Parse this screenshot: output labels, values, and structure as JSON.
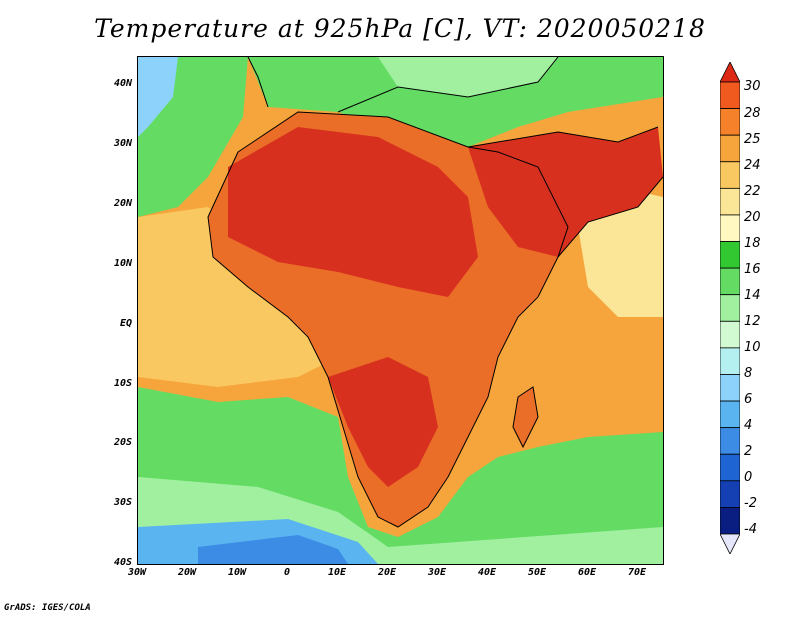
{
  "title": "Temperature at 925hPa [C], VT: 2020050218",
  "footer": "GrADS: IGES/COLA",
  "map": {
    "projection": "latlon",
    "lon_range": [
      -30,
      75
    ],
    "lat_range": [
      -40,
      45
    ],
    "colors": {
      "ocean_cold": "#4080e0",
      "green": "#6ed76e",
      "light_green": "#9ee89e",
      "yellow": "#f5d76e",
      "orange": "#f0a23c",
      "dark_orange": "#eb6e28",
      "red": "#d7301e",
      "coast": "#000000"
    }
  },
  "axes": {
    "lat_labels": [
      "40N",
      "30N",
      "20N",
      "10N",
      "EQ",
      "10S",
      "20S",
      "30S",
      "40S"
    ],
    "lon_labels": [
      "30W",
      "20W",
      "10W",
      "0",
      "10E",
      "20E",
      "30E",
      "40E",
      "50E",
      "60E",
      "70E"
    ]
  },
  "colorbar": {
    "labels": [
      "30",
      "28",
      "25",
      "24",
      "22",
      "20",
      "18",
      "16",
      "14",
      "12",
      "10",
      "8",
      "6",
      "4",
      "2",
      "0",
      "-2",
      "-4"
    ],
    "colors": [
      "#dc2814",
      "#f05a1e",
      "#f5822a",
      "#f5a53c",
      "#fac860",
      "#fae696",
      "#fff8c0",
      "#32c832",
      "#64dc64",
      "#a0f0a0",
      "#d2fad2",
      "#b4f0f0",
      "#8cd2fa",
      "#5ab4f0",
      "#3c8ce6",
      "#1e64d2",
      "#1440b4",
      "#0a1e82",
      "#e6e6fa"
    ]
  }
}
